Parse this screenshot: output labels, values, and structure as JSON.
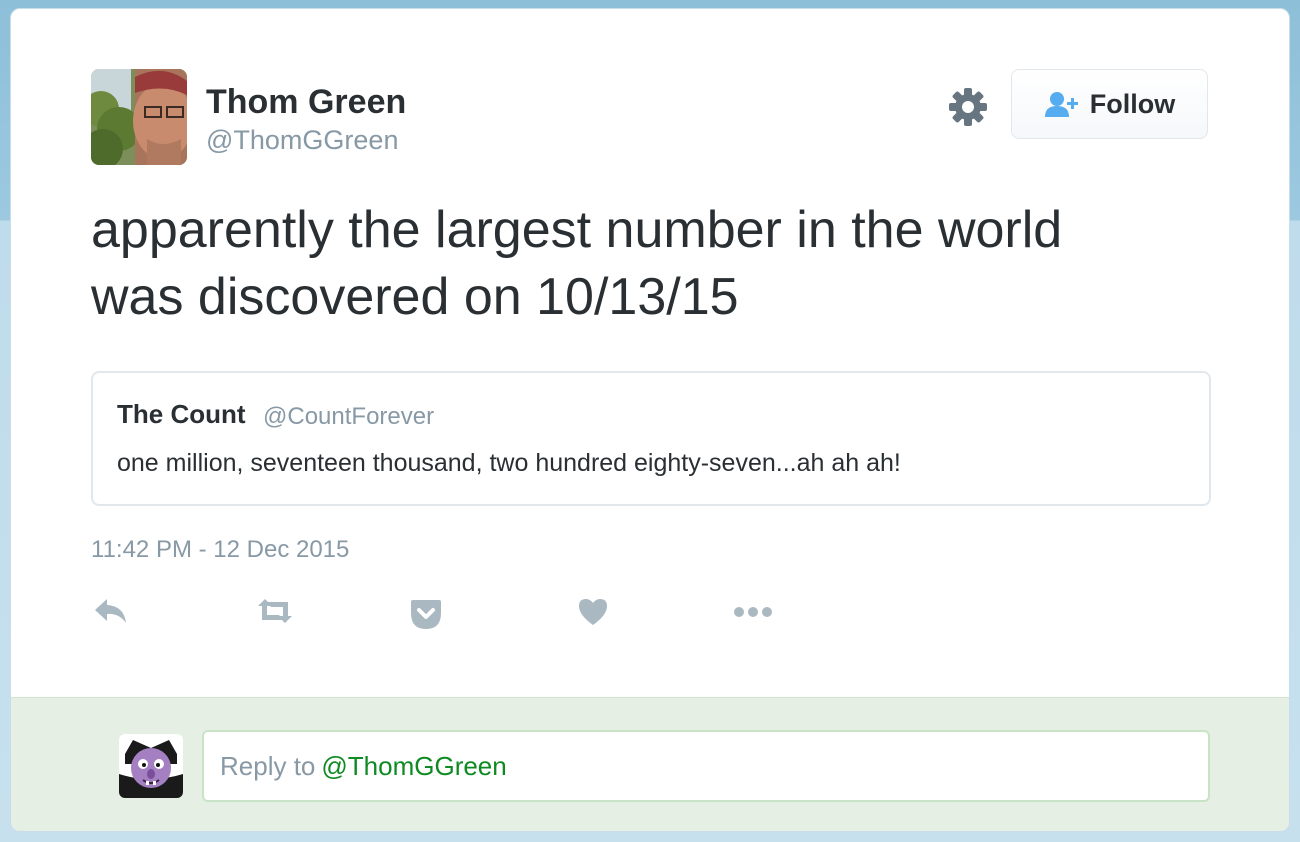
{
  "author": {
    "name": "Thom Green",
    "handle": "@ThomGGreen"
  },
  "follow_button": {
    "label": "Follow"
  },
  "tweet": {
    "line1": "apparently the largest number in the world",
    "line2": "was discovered on 10/13/15",
    "timestamp": "11:42 PM - 12 Dec 2015"
  },
  "quoted_tweet": {
    "name": "The Count",
    "handle": "@CountForever",
    "text": "one million, seventeen thousand, two hundred eighty-seven...ah ah ah!"
  },
  "actions": [
    "reply-icon",
    "retweet-icon",
    "pocket-icon",
    "like-icon",
    "more-icon"
  ],
  "reply_box": {
    "prefix": "Reply to",
    "mention": "@ThomGGreen"
  },
  "colors": {
    "text": "#292f33",
    "secondary": "#8899a6",
    "icon": "#aab8c2",
    "follow_icon": "#55acee",
    "reply_mention": "#0f8a23",
    "reply_bg": "#e5efe4"
  }
}
